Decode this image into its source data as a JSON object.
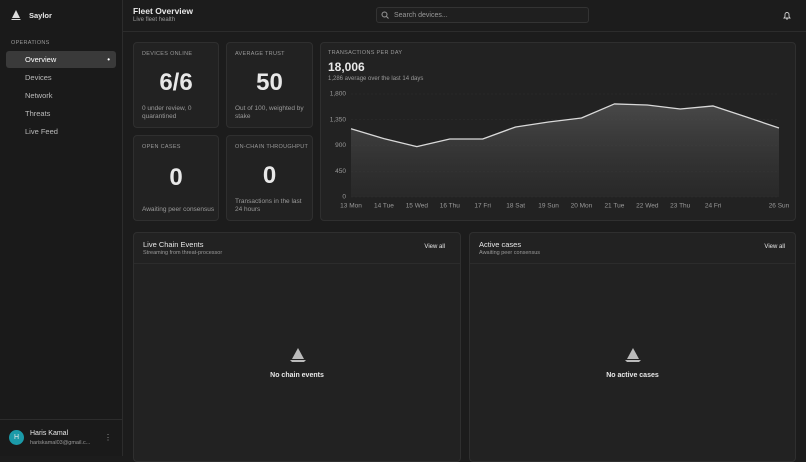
{
  "sidebar": {
    "brand": "Saylor",
    "section": "OPERATIONS",
    "nav": [
      "Overview",
      "Devices",
      "Network",
      "Threats",
      "Live Feed"
    ],
    "user": {
      "initial": "H",
      "name": "Haris Kamal",
      "email": "hariskamal03@gmail.c..."
    }
  },
  "header": {
    "title": "Fleet Overview",
    "subtitle": "Live fleet health",
    "search_placeholder": "Search devices..."
  },
  "stats": [
    {
      "label": "DEVICES ONLINE",
      "value": "6/6",
      "note": "0 under review, 0 quarantined"
    },
    {
      "label": "AVERAGE TRUST",
      "value": 50,
      "note": "Out of 100, weighted by stake"
    },
    {
      "label": "OPEN CASES",
      "value": 0,
      "note": "Awaiting peer consensus"
    },
    {
      "label": "ON-CHAIN THROUGHPUT",
      "value": 0,
      "note": "Transactions in the last 24 hours"
    }
  ],
  "chart_data": {
    "type": "area",
    "title": "TRANSACTIONS PER DAY",
    "headline": "18,006",
    "subtitle": "1,286 average over the last 14 days",
    "categories": [
      "13 Mon",
      "14 Tue",
      "15 Wed",
      "16 Thu",
      "17 Fri",
      "18 Sat",
      "19 Sun",
      "20 Mon",
      "21 Tue",
      "22 Wed",
      "23 Thu",
      "24 Fri",
      null,
      "26 Sun"
    ],
    "values": [
      1193,
      1020,
      880,
      1014,
      1014,
      1224,
      1311,
      1381,
      1626,
      1608,
      1538,
      1591,
      1400,
      1206
    ],
    "color": "#d9d9d9",
    "ylim": [
      0,
      1800
    ],
    "yticks": [
      0,
      450,
      900,
      {
        "value": 1350,
        "label": "1,350"
      },
      {
        "value": 1800,
        "label": "1,800"
      }
    ],
    "grid": true
  },
  "panels": [
    {
      "title": "Live Chain Events",
      "subtitle": "Streaming from threat-processor",
      "action": "View all",
      "empty": "No chain events"
    },
    {
      "title": "Active cases",
      "subtitle": "Awaiting peer consensus",
      "action": "View all",
      "empty": "No active cases"
    }
  ]
}
